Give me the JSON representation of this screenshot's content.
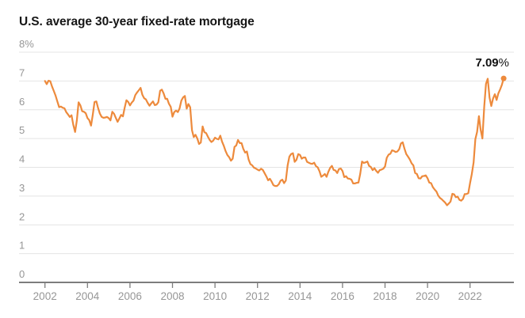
{
  "title": "U.S. average 30-year fixed-rate mortgage",
  "annotation": {
    "value": "7.09",
    "suffix": "%"
  },
  "colors": {
    "line": "#ED8A3C",
    "gridline": "#e4e4e4",
    "axis_line": "#7d7d7d",
    "tick_mark": "#7d7d7d",
    "axis_label": "#969696",
    "title_text": "#161616",
    "annotation_text": "#121212",
    "background": "#ffffff"
  },
  "chart_data": {
    "type": "line",
    "title": "U.S. average 30-year fixed-rate mortgage",
    "series_name": "30-year fixed-rate mortgage (%)",
    "unit": "percent",
    "frequency": "monthly",
    "x_start": "2002-01",
    "x_end": "2023-08",
    "ylim": [
      0,
      8
    ],
    "grid": true,
    "y_ticks": [
      {
        "value": 8,
        "label": "8%"
      },
      {
        "value": 7,
        "label": "7"
      },
      {
        "value": 6,
        "label": "6"
      },
      {
        "value": 5,
        "label": "5"
      },
      {
        "value": 4,
        "label": "4"
      },
      {
        "value": 3,
        "label": "3"
      },
      {
        "value": 2,
        "label": "2"
      },
      {
        "value": 1,
        "label": "1"
      },
      {
        "value": 0,
        "label": "0"
      }
    ],
    "x_tick_years": [
      2002,
      2004,
      2006,
      2008,
      2010,
      2012,
      2014,
      2016,
      2018,
      2020,
      2022
    ],
    "end_label": "7.09%",
    "end_value": 7.09,
    "values": [
      7.0,
      6.89,
      7.01,
      6.99,
      6.81,
      6.65,
      6.49,
      6.29,
      6.09,
      6.11,
      6.07,
      6.05,
      5.92,
      5.84,
      5.75,
      5.81,
      5.48,
      5.23,
      5.63,
      6.26,
      6.15,
      5.95,
      5.93,
      5.88,
      5.71,
      5.64,
      5.45,
      5.83,
      6.27,
      6.29,
      6.06,
      5.87,
      5.75,
      5.72,
      5.73,
      5.75,
      5.71,
      5.63,
      5.93,
      5.86,
      5.72,
      5.58,
      5.7,
      5.82,
      5.77,
      6.07,
      6.33,
      6.27,
      6.15,
      6.25,
      6.32,
      6.51,
      6.6,
      6.68,
      6.76,
      6.52,
      6.4,
      6.36,
      6.24,
      6.14,
      6.22,
      6.29,
      6.16,
      6.18,
      6.26,
      6.66,
      6.7,
      6.57,
      6.38,
      6.38,
      6.21,
      6.1,
      5.76,
      5.92,
      5.97,
      5.92,
      6.04,
      6.32,
      6.43,
      6.48,
      6.04,
      6.2,
      6.09,
      5.29,
      5.05,
      5.13,
      5.0,
      4.81,
      4.86,
      5.42,
      5.22,
      5.19,
      5.06,
      4.95,
      4.88,
      4.93,
      5.03,
      4.99,
      4.97,
      5.1,
      4.89,
      4.74,
      4.56,
      4.43,
      4.35,
      4.23,
      4.3,
      4.71,
      4.76,
      4.95,
      4.84,
      4.84,
      4.64,
      4.51,
      4.55,
      4.27,
      4.11,
      4.07,
      3.99,
      3.96,
      3.92,
      3.89,
      3.95,
      3.91,
      3.8,
      3.68,
      3.55,
      3.6,
      3.5,
      3.38,
      3.35,
      3.35,
      3.41,
      3.53,
      3.57,
      3.45,
      3.54,
      4.07,
      4.37,
      4.46,
      4.49,
      4.19,
      4.26,
      4.46,
      4.43,
      4.3,
      4.34,
      4.34,
      4.19,
      4.16,
      4.13,
      4.12,
      4.16,
      4.04,
      4.0,
      3.86,
      3.67,
      3.71,
      3.77,
      3.67,
      3.84,
      3.98,
      4.05,
      3.91,
      3.89,
      3.8,
      3.94,
      3.96,
      3.87,
      3.66,
      3.69,
      3.61,
      3.6,
      3.57,
      3.44,
      3.44,
      3.46,
      3.47,
      3.77,
      4.2,
      4.15,
      4.17,
      4.2,
      4.05,
      4.01,
      3.9,
      3.97,
      3.88,
      3.81,
      3.9,
      3.92,
      3.95,
      4.03,
      4.33,
      4.44,
      4.47,
      4.59,
      4.57,
      4.53,
      4.55,
      4.63,
      4.83,
      4.87,
      4.64,
      4.46,
      4.37,
      4.27,
      4.14,
      4.07,
      3.8,
      3.77,
      3.62,
      3.61,
      3.69,
      3.7,
      3.72,
      3.62,
      3.47,
      3.45,
      3.31,
      3.23,
      3.16,
      3.02,
      2.94,
      2.89,
      2.83,
      2.77,
      2.68,
      2.74,
      2.81,
      3.08,
      3.06,
      2.96,
      2.98,
      2.87,
      2.84,
      2.9,
      3.07,
      3.07,
      3.1,
      3.45,
      3.76,
      4.17,
      4.98,
      5.23,
      5.78,
      5.3,
      5.0,
      6.11,
      6.9,
      7.08,
      6.42,
      6.13,
      6.39,
      6.54,
      6.34,
      6.57,
      6.71,
      6.87,
      7.09
    ]
  }
}
